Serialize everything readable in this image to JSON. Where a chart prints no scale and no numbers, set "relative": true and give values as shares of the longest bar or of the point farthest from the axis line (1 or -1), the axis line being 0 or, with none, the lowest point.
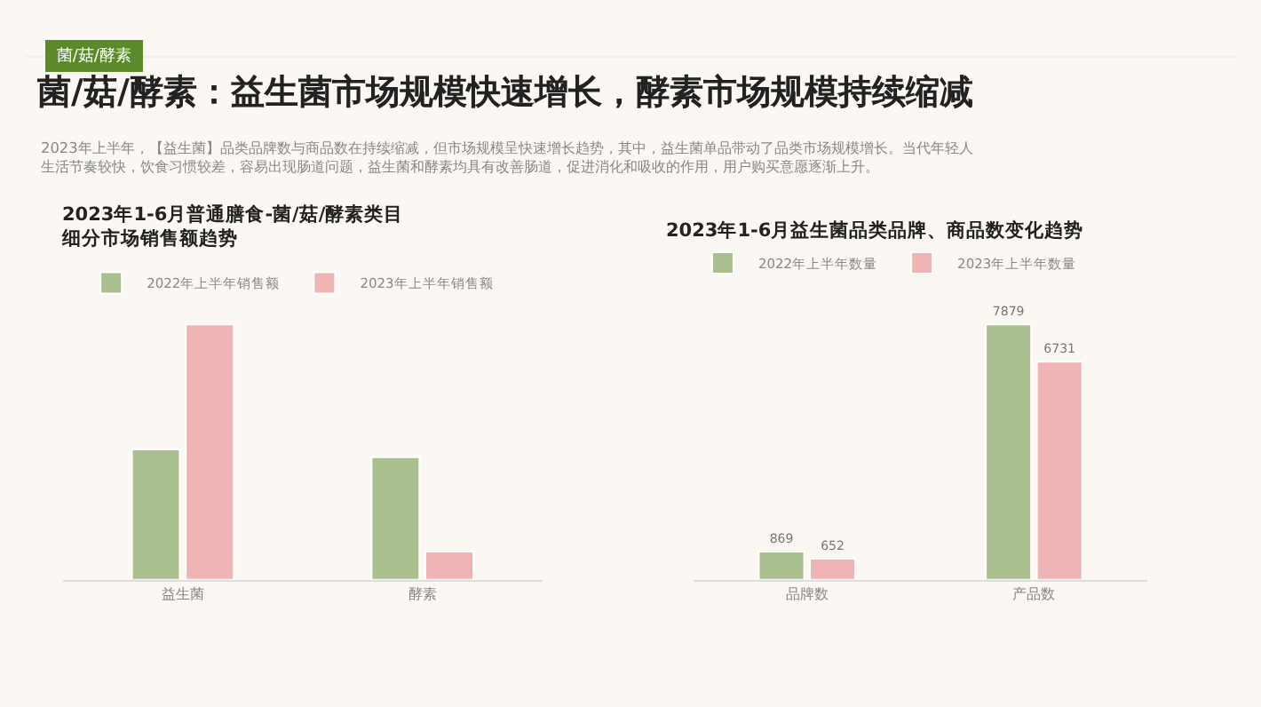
{
  "chart_data": [
    {
      "type": "other",
      "title": "菌/菇/酵素：益生菌市场规模快速增长，酵素市场规模持续缩减",
      "subtitle": "2023年上半年，【益生菌】品类品牌数与商品数在持续缩减，但市场规模呈快速增长趋势，其中，益生菌单品带动了品类市场规模增长。当代年轻人生活节奏较快，饮食习惯较差，容易出现肠道问题，益生菌和酵素均具有改善肠道，促进消化和吸收的作用，用户购买意愿逐渐上升。",
      "annotations": [
        "菌/菇/酵素"
      ]
    },
    {
      "type": "bar",
      "title": "2023年1-6月普通膳食-菌/菇/酵素类目细分市场销售额趋势",
      "categories": [
        "益生菌",
        "酵素"
      ],
      "relative": true,
      "legend": "top left",
      "grid": false,
      "series": [
        {
          "name": "2022年上半年销售额",
          "color": "#abc08f",
          "values": [
            0.51,
            0.48
          ]
        },
        {
          "name": "2023年上半年销售额",
          "color": "#efb5b4",
          "values": [
            1,
            0.11
          ]
        }
      ]
    },
    {
      "type": "bar",
      "title": "2023年1-6月益生菌品类品牌、商品数变化趋势",
      "categories": [
        "品牌数",
        "产品数"
      ],
      "data_labels": true,
      "legend": "top left",
      "grid": false,
      "tick_labels": "x",
      "series": [
        {
          "name": "2022年上半年数量",
          "color": "#abc08f",
          "values": [
            869,
            7879
          ]
        },
        {
          "name": "2023年上半年数量",
          "color": "#efb5b4",
          "values": [
            652,
            6731
          ]
        }
      ]
    }
  ]
}
